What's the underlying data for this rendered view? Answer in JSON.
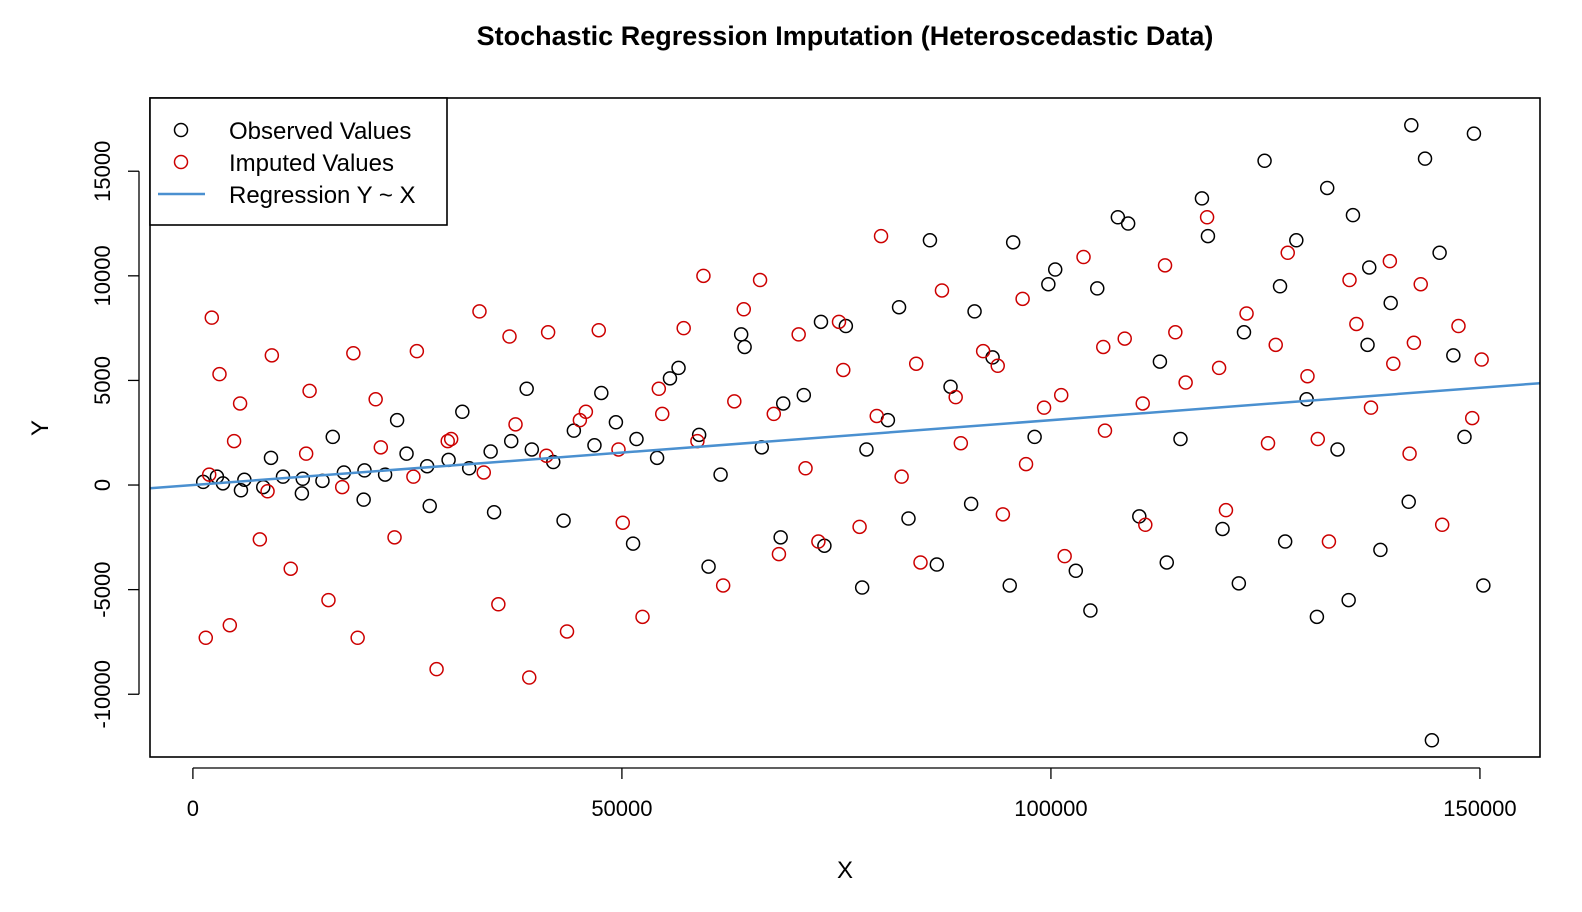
{
  "chart_data": {
    "type": "scatter",
    "title": "Stochastic Regression Imputation (Heteroscedastic Data)",
    "xlabel": "X",
    "ylabel": "Y",
    "xlim": [
      -5000,
      157000
    ],
    "ylim": [
      -13000,
      18500
    ],
    "xticks": [
      0,
      50000,
      100000,
      150000
    ],
    "xtick_labels": [
      "0",
      "50000",
      "100000",
      "150000"
    ],
    "yticks": [
      -10000,
      -5000,
      0,
      5000,
      10000,
      15000
    ],
    "ytick_labels": [
      "-10000",
      "-5000",
      "0",
      "5000",
      "10000",
      "15000"
    ],
    "legend_position": "top-left",
    "legend": [
      {
        "label": "Observed Values",
        "symbol": "open-circle",
        "color": "#000000"
      },
      {
        "label": "Imputed Values",
        "symbol": "open-circle",
        "color": "#cc0000"
      },
      {
        "label": "Regression Y ~ X",
        "symbol": "line",
        "color": "#4a90d0"
      }
    ],
    "regression": {
      "intercept": 0,
      "slope": 0.031,
      "color": "#4a90d0"
    },
    "series": [
      {
        "name": "Observed Values",
        "color": "#000000",
        "points": [
          [
            1200,
            150
          ],
          [
            3500,
            80
          ],
          [
            6000,
            250
          ],
          [
            8200,
            -100
          ],
          [
            10500,
            400
          ],
          [
            12800,
            300
          ],
          [
            15100,
            200
          ],
          [
            17600,
            600
          ],
          [
            20000,
            700
          ],
          [
            22400,
            500
          ],
          [
            24900,
            1500
          ],
          [
            27300,
            900
          ],
          [
            29800,
            1200
          ],
          [
            32200,
            800
          ],
          [
            34700,
            1600
          ],
          [
            37100,
            2100
          ],
          [
            39500,
            1700
          ],
          [
            42000,
            1100
          ],
          [
            44400,
            2600
          ],
          [
            46800,
            1900
          ],
          [
            49300,
            3000
          ],
          [
            51700,
            2200
          ],
          [
            54100,
            1300
          ],
          [
            56600,
            5600
          ],
          [
            59000,
            2400
          ],
          [
            61500,
            500
          ],
          [
            63900,
            7200
          ],
          [
            66300,
            1800
          ],
          [
            68800,
            3900
          ],
          [
            71200,
            4300
          ],
          [
            73600,
            -2900
          ],
          [
            76100,
            7600
          ],
          [
            78500,
            1700
          ],
          [
            81000,
            3100
          ],
          [
            83400,
            -1600
          ],
          [
            85900,
            11700
          ],
          [
            88300,
            4700
          ],
          [
            90700,
            -900
          ],
          [
            93200,
            6100
          ],
          [
            95600,
            11600
          ],
          [
            98100,
            2300
          ],
          [
            100500,
            10300
          ],
          [
            102900,
            -4100
          ],
          [
            105400,
            9400
          ],
          [
            107800,
            12800
          ],
          [
            110300,
            -1500
          ],
          [
            112700,
            5900
          ],
          [
            115100,
            2200
          ],
          [
            117600,
            13700
          ],
          [
            120000,
            -2100
          ],
          [
            122500,
            7300
          ],
          [
            124900,
            15500
          ],
          [
            127300,
            -2700
          ],
          [
            129800,
            4100
          ],
          [
            132200,
            14200
          ],
          [
            134700,
            -5500
          ],
          [
            137100,
            10400
          ],
          [
            139600,
            8700
          ],
          [
            142000,
            17200
          ],
          [
            144400,
            -12200
          ],
          [
            146900,
            6200
          ],
          [
            149300,
            16800
          ],
          [
            150400,
            -4800
          ],
          [
            143600,
            15600
          ],
          [
            138400,
            -3100
          ],
          [
            135200,
            12900
          ],
          [
            131000,
            -6300
          ],
          [
            126700,
            9500
          ],
          [
            121900,
            -4700
          ],
          [
            118300,
            11900
          ],
          [
            113500,
            -3700
          ],
          [
            109000,
            12500
          ],
          [
            104600,
            -6000
          ],
          [
            99700,
            9600
          ],
          [
            95200,
            -4800
          ],
          [
            91100,
            8300
          ],
          [
            86700,
            -3800
          ],
          [
            82300,
            8500
          ],
          [
            78000,
            -4900
          ],
          [
            73200,
            7800
          ],
          [
            68500,
            -2500
          ],
          [
            64300,
            6600
          ],
          [
            60100,
            -3900
          ],
          [
            55600,
            5100
          ],
          [
            51300,
            -2800
          ],
          [
            47600,
            4400
          ],
          [
            43200,
            -1700
          ],
          [
            38900,
            4600
          ],
          [
            35100,
            -1300
          ],
          [
            31400,
            3500
          ],
          [
            27600,
            -1000
          ],
          [
            23800,
            3100
          ],
          [
            19900,
            -700
          ],
          [
            16300,
            2300
          ],
          [
            12700,
            -400
          ],
          [
            9100,
            1300
          ],
          [
            5600,
            -250
          ],
          [
            2800,
            400
          ],
          [
            148200,
            2300
          ],
          [
            145300,
            11100
          ],
          [
            141700,
            -800
          ],
          [
            136900,
            6700
          ],
          [
            133400,
            1700
          ],
          [
            128600,
            11700
          ]
        ]
      },
      {
        "name": "Imputed Values",
        "color": "#cc0000",
        "points": [
          [
            1500,
            -7300
          ],
          [
            2200,
            8000
          ],
          [
            3100,
            5300
          ],
          [
            4300,
            -6700
          ],
          [
            5500,
            3900
          ],
          [
            7800,
            -2600
          ],
          [
            9200,
            6200
          ],
          [
            11400,
            -4000
          ],
          [
            13600,
            4500
          ],
          [
            15800,
            -5500
          ],
          [
            18700,
            6300
          ],
          [
            19200,
            -7300
          ],
          [
            21300,
            4100
          ],
          [
            23500,
            -2500
          ],
          [
            26100,
            6400
          ],
          [
            28400,
            -8800
          ],
          [
            30100,
            2200
          ],
          [
            33400,
            8300
          ],
          [
            35600,
            -5700
          ],
          [
            36900,
            7100
          ],
          [
            39200,
            -9200
          ],
          [
            41400,
            7300
          ],
          [
            43600,
            -7000
          ],
          [
            45100,
            3100
          ],
          [
            47300,
            7400
          ],
          [
            50100,
            -1800
          ],
          [
            52400,
            -6300
          ],
          [
            54700,
            3400
          ],
          [
            57200,
            7500
          ],
          [
            59500,
            10000
          ],
          [
            61800,
            -4800
          ],
          [
            64200,
            8400
          ],
          [
            66100,
            9800
          ],
          [
            68300,
            -3300
          ],
          [
            70600,
            7200
          ],
          [
            72900,
            -2700
          ],
          [
            75300,
            7800
          ],
          [
            77700,
            -2000
          ],
          [
            80200,
            11900
          ],
          [
            82600,
            400
          ],
          [
            84800,
            -3700
          ],
          [
            87300,
            9300
          ],
          [
            89500,
            2000
          ],
          [
            92100,
            6400
          ],
          [
            94400,
            -1400
          ],
          [
            96700,
            8900
          ],
          [
            99200,
            3700
          ],
          [
            101600,
            -3400
          ],
          [
            103800,
            10900
          ],
          [
            106300,
            2600
          ],
          [
            108600,
            7000
          ],
          [
            111000,
            -1900
          ],
          [
            113300,
            10500
          ],
          [
            115700,
            4900
          ],
          [
            118200,
            12800
          ],
          [
            120400,
            -1200
          ],
          [
            122800,
            8200
          ],
          [
            125300,
            2000
          ],
          [
            127600,
            11100
          ],
          [
            129900,
            5200
          ],
          [
            132400,
            -2700
          ],
          [
            134800,
            9800
          ],
          [
            137300,
            3700
          ],
          [
            139500,
            10700
          ],
          [
            141800,
            1500
          ],
          [
            143100,
            9600
          ],
          [
            145600,
            -1900
          ],
          [
            147500,
            7600
          ],
          [
            149100,
            3200
          ],
          [
            150200,
            6000
          ],
          [
            142300,
            6800
          ],
          [
            139900,
            5800
          ],
          [
            135600,
            7700
          ],
          [
            131100,
            2200
          ],
          [
            126200,
            6700
          ],
          [
            119600,
            5600
          ],
          [
            114500,
            7300
          ],
          [
            110700,
            3900
          ],
          [
            106100,
            6600
          ],
          [
            101200,
            4300
          ],
          [
            97100,
            1000
          ],
          [
            93800,
            5700
          ],
          [
            88900,
            4200
          ],
          [
            84300,
            5800
          ],
          [
            79700,
            3300
          ],
          [
            75800,
            5500
          ],
          [
            71400,
            800
          ],
          [
            67700,
            3400
          ],
          [
            63100,
            4000
          ],
          [
            58800,
            2100
          ],
          [
            54300,
            4600
          ],
          [
            49600,
            1700
          ],
          [
            45800,
            3500
          ],
          [
            41200,
            1400
          ],
          [
            37600,
            2900
          ],
          [
            33900,
            600
          ],
          [
            29700,
            2100
          ],
          [
            25700,
            400
          ],
          [
            21900,
            1800
          ],
          [
            17400,
            -100
          ],
          [
            13200,
            1500
          ],
          [
            8700,
            -300
          ],
          [
            4800,
            2100
          ],
          [
            1900,
            500
          ]
        ]
      }
    ]
  }
}
